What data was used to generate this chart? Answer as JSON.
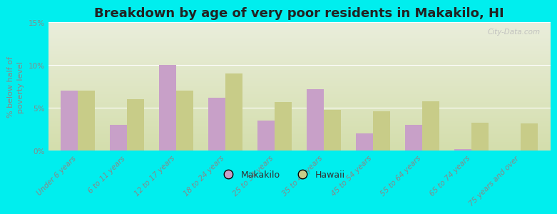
{
  "title": "Breakdown by age of very poor residents in Makakilo, HI",
  "ylabel": "% below half of\npoverty level",
  "categories": [
    "Under 6 years",
    "6 to 11 years",
    "12 to 17 years",
    "18 to 24 years",
    "25 to 34 years",
    "35 to 44 years",
    "45 to 54 years",
    "55 to 64 years",
    "65 to 74 years",
    "75 years and over"
  ],
  "makakilo_values": [
    7.0,
    3.0,
    10.0,
    6.2,
    3.5,
    7.2,
    2.0,
    3.0,
    0.2,
    0.0
  ],
  "hawaii_values": [
    7.0,
    6.0,
    7.0,
    9.0,
    5.7,
    4.8,
    4.6,
    5.8,
    3.3,
    3.2
  ],
  "makakilo_color": "#c8a0c8",
  "hawaii_color": "#c8cc88",
  "background_outer": "#00eeee",
  "background_inner_top": "#eaeedc",
  "background_inner_bottom": "#d4deac",
  "ylim": [
    0,
    15
  ],
  "yticks": [
    0,
    5,
    10,
    15
  ],
  "ytick_labels": [
    "0%",
    "5%",
    "10%",
    "15%"
  ],
  "title_fontsize": 13,
  "axis_label_fontsize": 8,
  "tick_fontsize": 7.5,
  "bar_width": 0.35,
  "legend_labels": [
    "Makakilo",
    "Hawaii"
  ],
  "watermark": "City-Data.com"
}
